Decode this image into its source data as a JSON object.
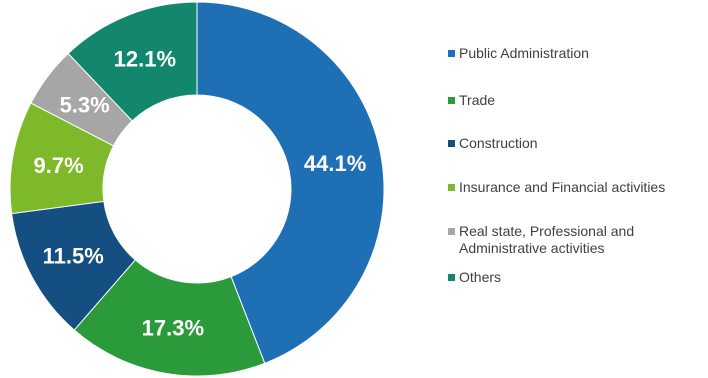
{
  "chart_data": {
    "type": "pie",
    "donut": true,
    "legend_position": "right",
    "slices": [
      {
        "label": "Public Administration",
        "value": 44.1,
        "display": "44.1%",
        "color": "#1F6FB5"
      },
      {
        "label": "Trade",
        "value": 17.3,
        "display": "17.3%",
        "color": "#2A9A3A"
      },
      {
        "label": "Construction",
        "value": 11.5,
        "display": "11.5%",
        "color": "#154E80"
      },
      {
        "label": "Insurance and Financial activities",
        "value": 9.7,
        "display": "9.7%",
        "color": "#7DB928"
      },
      {
        "label": "Real state, Professional and\nAdministrative activities",
        "value": 5.3,
        "display": "5.3%",
        "color": "#A6A6A6"
      },
      {
        "label": "Others",
        "value": 12.1,
        "display": "12.1%",
        "color": "#13876D"
      }
    ]
  }
}
